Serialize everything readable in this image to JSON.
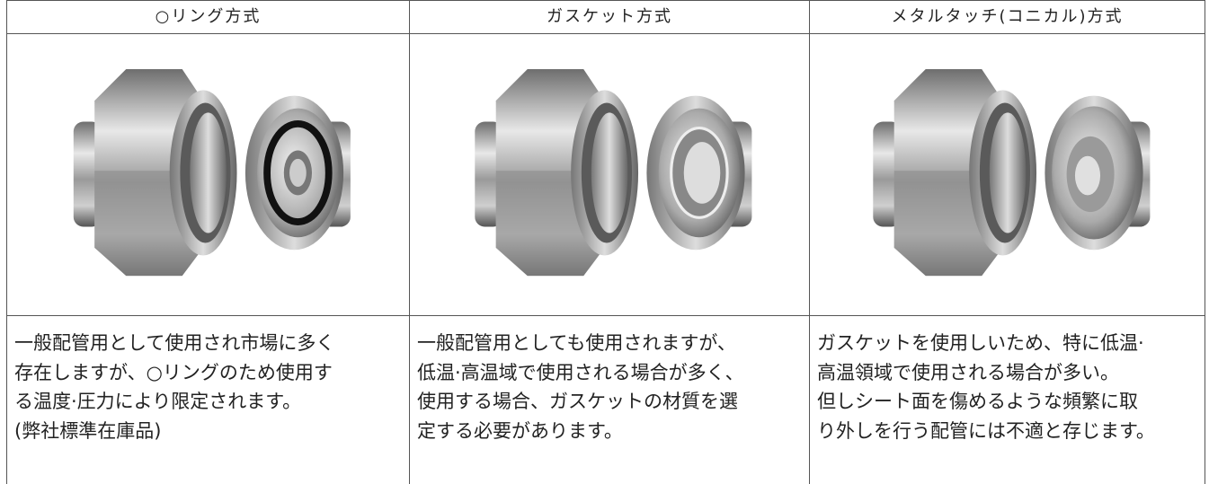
{
  "table": {
    "headers": [
      "○リング方式",
      "ガスケット方式",
      "メタルタッチ(コニカル)方式"
    ],
    "descriptions": [
      [
        "一般配管用として使用され市場に多く",
        "存在しますが、○リングのため使用す",
        "る温度·圧力により限定されます。",
        "(弊社標準在庫品)"
      ],
      [
        "一般配管用としても使用されますが、",
        "低温·高温域で使用される場合が多く、",
        "使用する場合、ガスケットの材質を選",
        "定する必要があります。"
      ],
      [
        "ガスケットを使用しいため、特に低温·",
        "高温領域で使用される場合が多い。",
        "但しシート面を傷めるような頻繁に取",
        "り外しを行う配管には不適と存じます。"
      ]
    ]
  }
}
